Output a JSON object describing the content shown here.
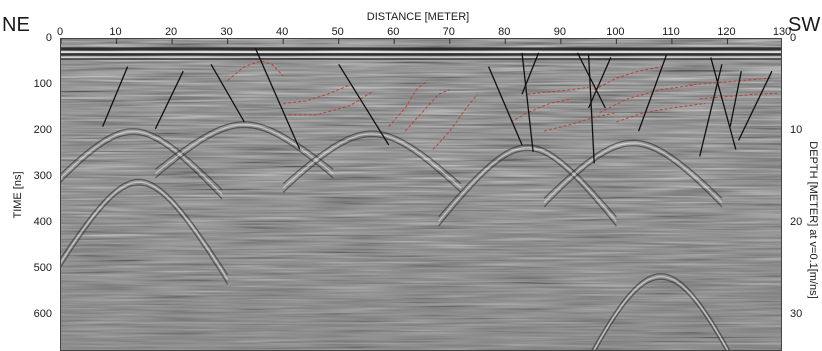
{
  "labels": {
    "left_direction": "NE",
    "right_direction": "SW",
    "x_axis_title": "DISTANCE [METER]",
    "left_axis_title": "TIME [ns]",
    "right_axis_title": "DEPTH [METER] at v=0.1[m/ns]"
  },
  "chart_data": {
    "type": "radargram",
    "x": {
      "label": "DISTANCE [METER]",
      "range": [
        0,
        130
      ],
      "ticks": [
        "0",
        "10",
        "20",
        "30",
        "40",
        "50",
        "60",
        "70",
        "80",
        "90",
        "100",
        "110",
        "120",
        "130"
      ]
    },
    "y_left": {
      "label": "TIME [ns]",
      "range": [
        0,
        680
      ],
      "ticks": [
        "0",
        "100",
        "200",
        "300",
        "400",
        "500",
        "600"
      ]
    },
    "y_right": {
      "label": "DEPTH [METER] at v=0.1[m/ns]",
      "ticks": [
        "0",
        "10",
        "20",
        "30"
      ]
    },
    "interpreted_faults": [
      {
        "x": [
          12,
          7.5
        ],
        "t": [
          60,
          190
        ]
      },
      {
        "x": [
          22,
          17
        ],
        "t": [
          70,
          195
        ]
      },
      {
        "x": [
          27,
          33
        ],
        "t": [
          55,
          180
        ]
      },
      {
        "x": [
          35,
          43
        ],
        "t": [
          20,
          240
        ]
      },
      {
        "x": [
          50,
          59
        ],
        "t": [
          55,
          230
        ]
      },
      {
        "x": [
          77,
          83
        ],
        "t": [
          60,
          230
        ]
      },
      {
        "x": [
          83,
          85
        ],
        "t": [
          30,
          245
        ]
      },
      {
        "x": [
          86,
          83
        ],
        "t": [
          30,
          120
        ]
      },
      {
        "x": [
          93,
          98
        ],
        "t": [
          30,
          150
        ]
      },
      {
        "x": [
          95,
          96
        ],
        "t": [
          35,
          270
        ]
      },
      {
        "x": [
          99,
          95
        ],
        "t": [
          40,
          150
        ]
      },
      {
        "x": [
          109,
          104
        ],
        "t": [
          35,
          200
        ]
      },
      {
        "x": [
          119,
          115
        ],
        "t": [
          55,
          255
        ]
      },
      {
        "x": [
          117,
          121.5
        ],
        "t": [
          40,
          240
        ]
      },
      {
        "x": [
          122.5,
          120.5
        ],
        "t": [
          70,
          190
        ]
      },
      {
        "x": [
          128,
          122
        ],
        "t": [
          70,
          220
        ]
      }
    ],
    "interpreted_reflectors": [
      {
        "x": [
          30,
          33,
          36,
          38,
          40
        ],
        "t": [
          90,
          60,
          48,
          55,
          80
        ]
      },
      {
        "x": [
          40,
          44,
          48,
          52
        ],
        "t": [
          140,
          135,
          120,
          100
        ]
      },
      {
        "x": [
          41,
          46,
          52,
          56
        ],
        "t": [
          165,
          165,
          145,
          115
        ]
      },
      {
        "x": [
          59,
          62,
          64,
          66
        ],
        "t": [
          190,
          150,
          110,
          90
        ]
      },
      {
        "x": [
          62,
          65,
          68,
          70
        ],
        "t": [
          200,
          160,
          120,
          110
        ]
      },
      {
        "x": [
          67,
          70,
          73,
          75
        ],
        "t": [
          240,
          200,
          150,
          120
        ]
      },
      {
        "x": [
          81,
          84,
          88,
          92
        ],
        "t": [
          180,
          160,
          140,
          130
        ]
      },
      {
        "x": [
          84,
          88,
          92,
          95
        ],
        "t": [
          120,
          115,
          110,
          105
        ]
      },
      {
        "x": [
          87,
          92,
          96,
          100
        ],
        "t": [
          200,
          185,
          170,
          160
        ]
      },
      {
        "x": [
          96,
          100,
          104,
          108
        ],
        "t": [
          110,
          85,
          70,
          60
        ]
      },
      {
        "x": [
          97,
          102,
          108,
          114
        ],
        "t": [
          160,
          130,
          110,
          100
        ]
      },
      {
        "x": [
          100,
          105,
          110,
          116
        ],
        "t": [
          180,
          160,
          150,
          140
        ]
      },
      {
        "x": [
          113,
          118,
          123,
          128
        ],
        "t": [
          100,
          95,
          90,
          85
        ]
      },
      {
        "x": [
          115,
          120,
          125,
          129
        ],
        "t": [
          130,
          125,
          120,
          118
        ]
      }
    ],
    "diffraction_hyperbolas": [
      {
        "x0": 13,
        "t0": 195,
        "a": 8
      },
      {
        "x0": 33,
        "t0": 180,
        "a": 9
      },
      {
        "x0": 56,
        "t0": 200,
        "a": 9
      },
      {
        "x0": 84,
        "t0": 230,
        "a": 8
      },
      {
        "x0": 103,
        "t0": 220,
        "a": 9
      },
      {
        "x0": 108,
        "t0": 510,
        "a": 10
      },
      {
        "x0": 14,
        "t0": 305,
        "a": 8
      }
    ],
    "colors": {
      "fault": "#111111",
      "reflector": "#c0392b",
      "background": "#7d7d7d",
      "frame": "#444444"
    }
  }
}
